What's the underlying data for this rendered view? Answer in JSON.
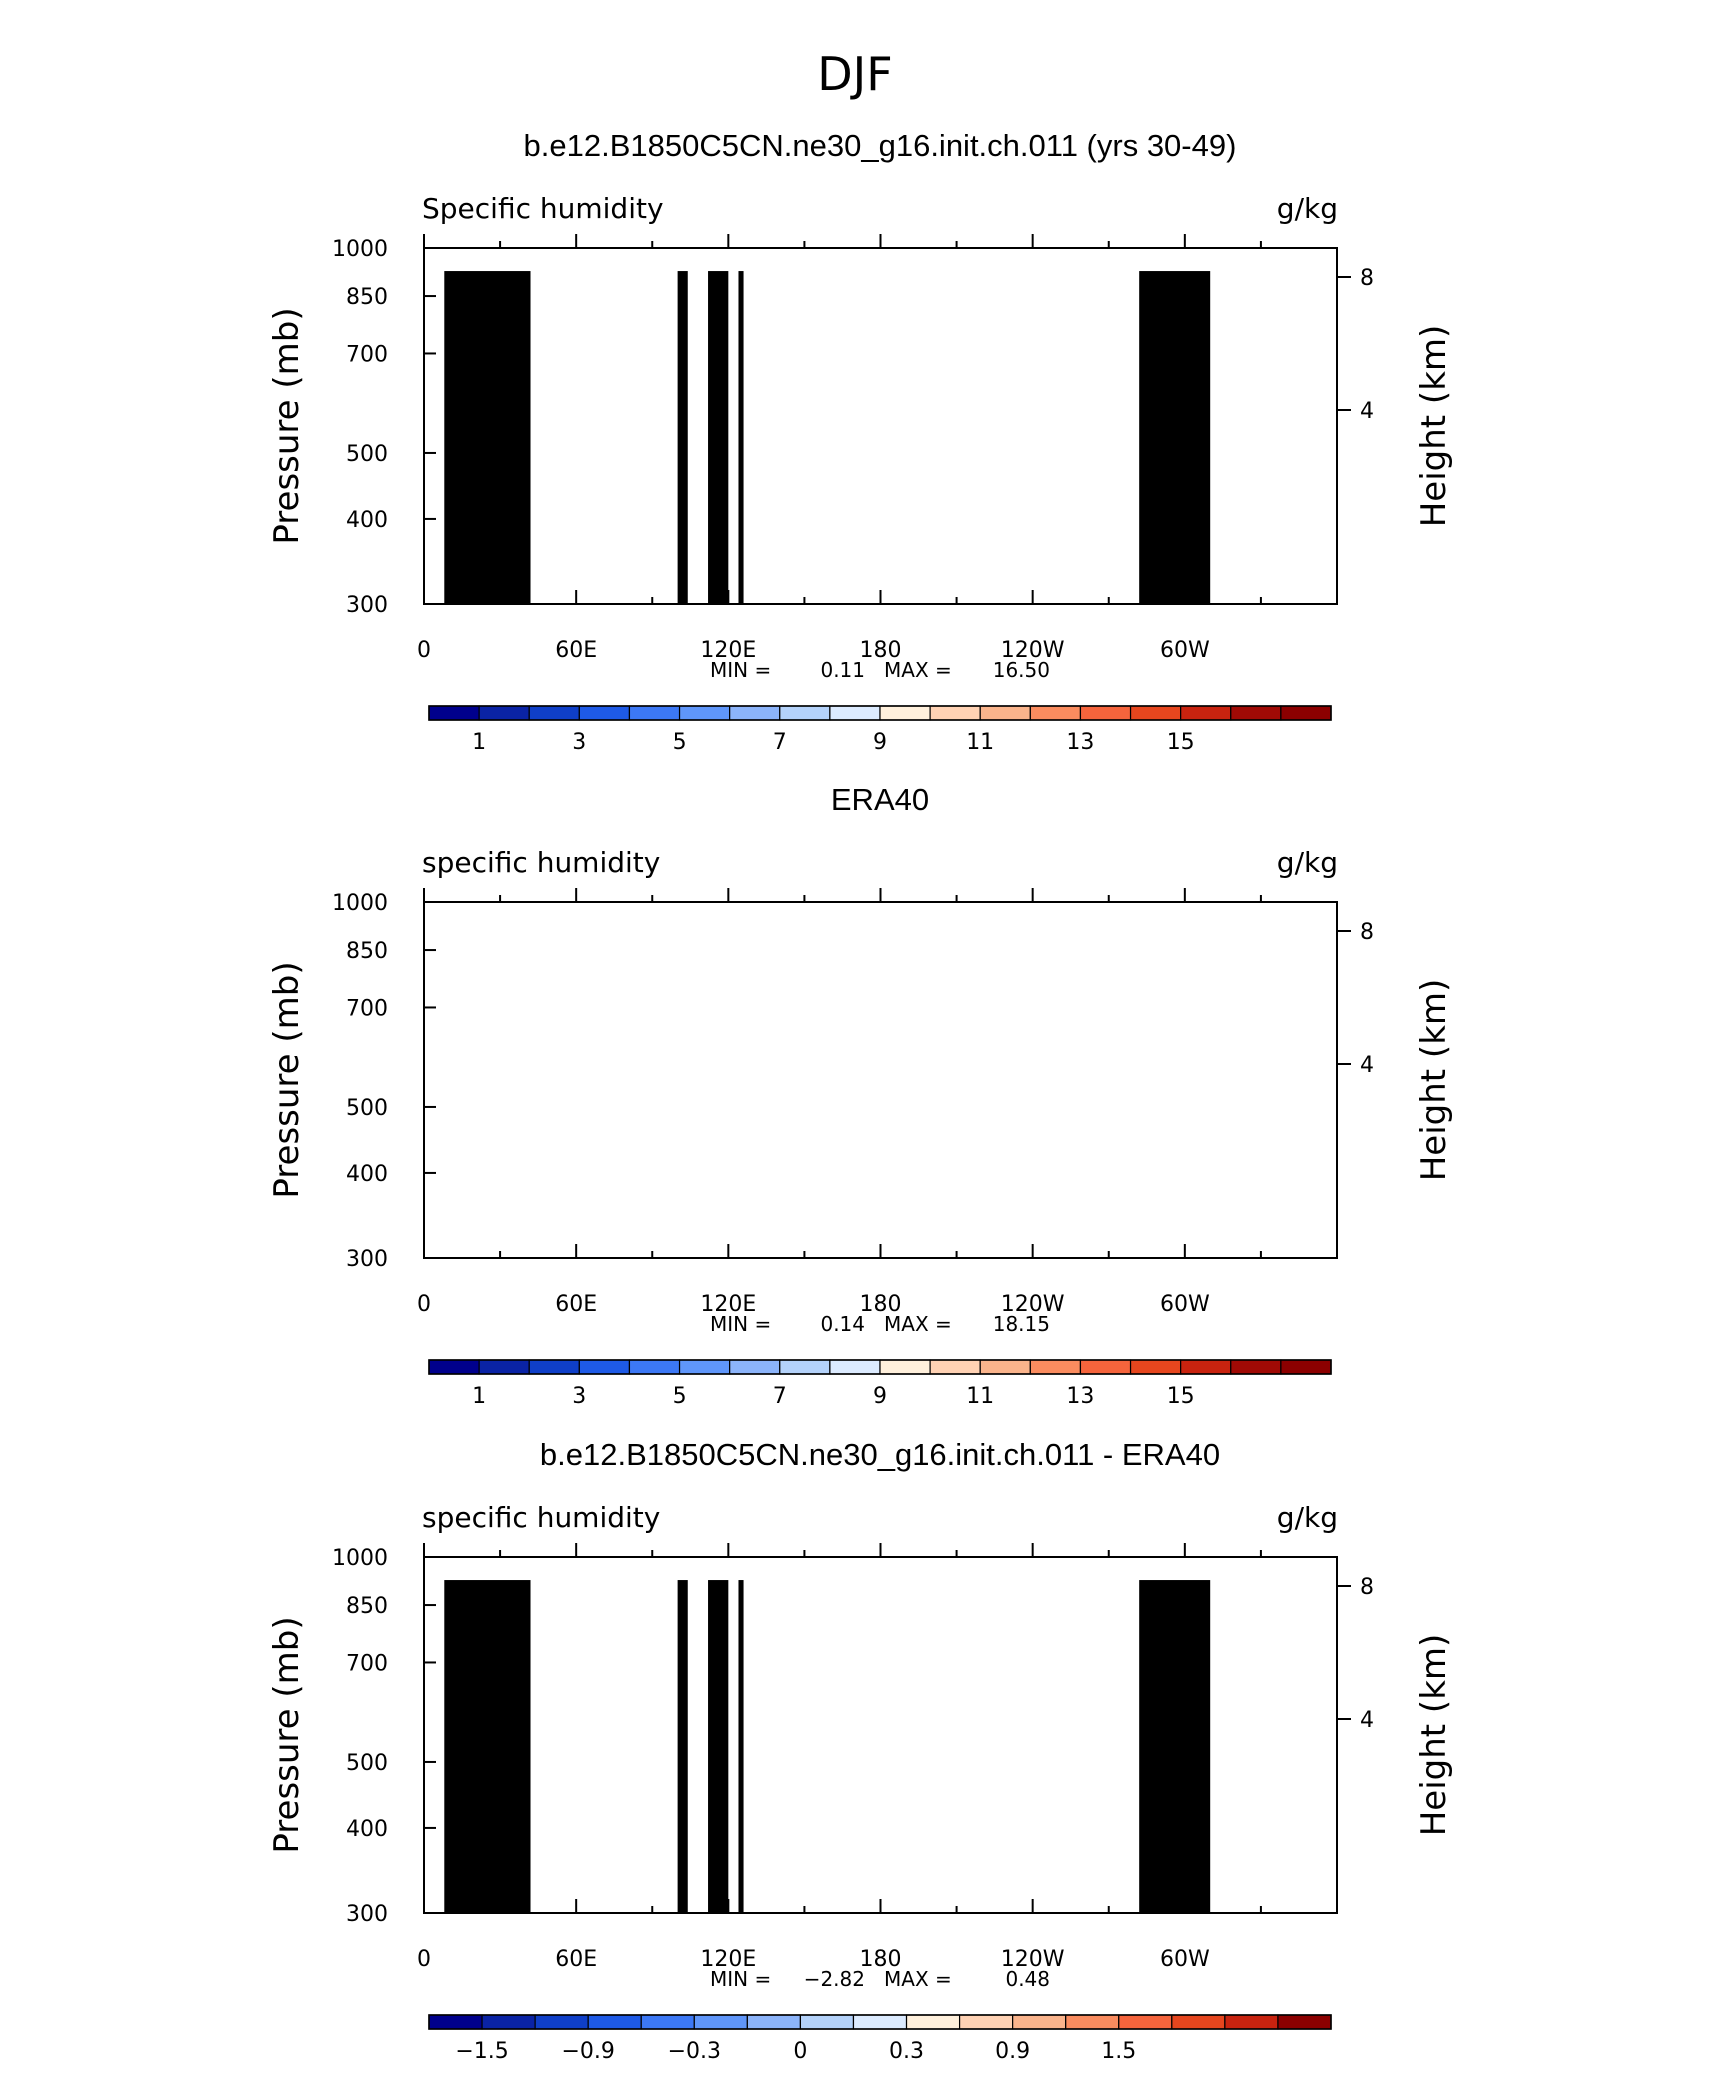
{
  "figure": {
    "title": "DJF"
  },
  "panel_labels": {
    "pressure_axis": "Pressure (mb)",
    "height_axis": "Height (km)",
    "min_label": "MIN =",
    "max_label": "MAX ="
  },
  "chart_data": [
    {
      "type": "heatmap",
      "title": "b.e12.B1850C5CN.ne30_g16.init.ch.011 (yrs 30-49)",
      "left_label": "Specific humidity",
      "units": "g/kg",
      "ylabel": "Pressure (mb)",
      "ylabel_right": "Height (km)",
      "x_ticks": [
        "0",
        "60E",
        "120E",
        "180",
        "120W",
        "60W"
      ],
      "x_tick_values": [
        0,
        60,
        120,
        180,
        240,
        300
      ],
      "xlim": [
        0,
        360
      ],
      "y_ticks": [
        300,
        400,
        500,
        700,
        850,
        1000
      ],
      "ylim": [
        1000,
        300
      ],
      "y_scale": "log",
      "height_ticks": [
        4,
        8
      ],
      "min": "0.11",
      "max": "16.50",
      "colorbar_labels": [
        "1",
        "3",
        "5",
        "7",
        "9",
        "11",
        "13",
        "15"
      ],
      "colors": [
        "#00008c",
        "#0a23a5",
        "#0f3fc8",
        "#1e5ae6",
        "#3c78f5",
        "#5f96fa",
        "#8cb4fa",
        "#b4d2fa",
        "#dcebff",
        "#fff0dc",
        "#ffd2b4",
        "#fab48c",
        "#fa8c5f",
        "#f5643c",
        "#e6461e",
        "#c8230f",
        "#a00a05",
        "#8c0000"
      ],
      "levels": [
        0.5,
        1,
        1.5,
        2,
        2.5,
        3,
        3.5,
        4,
        4.5,
        5,
        5.5,
        6,
        6.5,
        7,
        7.5,
        8,
        8.5,
        9,
        9.5,
        10,
        10.5,
        11,
        11.5,
        12,
        12.5,
        13,
        13.5,
        14,
        14.5,
        15,
        15.5,
        16
      ],
      "model": "seasonal"
    },
    {
      "type": "heatmap",
      "title": "ERA40",
      "left_label": "specific humidity",
      "units": "g/kg",
      "ylabel": "Pressure (mb)",
      "ylabel_right": "Height (km)",
      "x_ticks": [
        "0",
        "60E",
        "120E",
        "180",
        "120W",
        "60W"
      ],
      "x_tick_values": [
        0,
        60,
        120,
        180,
        240,
        300
      ],
      "xlim": [
        0,
        360
      ],
      "y_ticks": [
        300,
        400,
        500,
        700,
        850,
        1000
      ],
      "ylim": [
        1000,
        300
      ],
      "y_scale": "log",
      "height_ticks": [
        4,
        8
      ],
      "min": "0.14",
      "max": "18.15",
      "colorbar_labels": [
        "1",
        "3",
        "5",
        "7",
        "9",
        "11",
        "13",
        "15"
      ],
      "colors": [
        "#00008c",
        "#0a23a5",
        "#0f3fc8",
        "#1e5ae6",
        "#3c78f5",
        "#5f96fa",
        "#8cb4fa",
        "#b4d2fa",
        "#dcebff",
        "#fff0dc",
        "#ffd2b4",
        "#fab48c",
        "#fa8c5f",
        "#f5643c",
        "#e6461e",
        "#c8230f",
        "#a00a05",
        "#8c0000"
      ],
      "levels": [
        0.5,
        1,
        1.5,
        2,
        2.5,
        3,
        3.5,
        4,
        4.5,
        5,
        5.5,
        6,
        6.5,
        7,
        7.5,
        8,
        8.5,
        9,
        9.5,
        10,
        10.5,
        11,
        11.5,
        12,
        12.5,
        13,
        13.5,
        14,
        14.5,
        15,
        15.5,
        16
      ],
      "model": "seasonal"
    },
    {
      "type": "heatmap",
      "title": "b.e12.B1850C5CN.ne30_g16.init.ch.011 - ERA40",
      "left_label": "specific humidity",
      "units": "g/kg",
      "ylabel": "Pressure (mb)",
      "ylabel_right": "Height (km)",
      "x_ticks": [
        "0",
        "60E",
        "120E",
        "180",
        "120W",
        "60W"
      ],
      "x_tick_values": [
        0,
        60,
        120,
        180,
        240,
        300
      ],
      "xlim": [
        0,
        360
      ],
      "y_ticks": [
        300,
        400,
        500,
        700,
        850,
        1000
      ],
      "ylim": [
        1000,
        300
      ],
      "y_scale": "log",
      "height_ticks": [
        4,
        8
      ],
      "min": "−2.82",
      "max": "0.48",
      "colorbar_labels": [
        "−1.5",
        "−0.9",
        "−0.3",
        "0",
        "0.3",
        "0.9",
        "1.5"
      ],
      "colors": [
        "#00008c",
        "#0a23a5",
        "#0f3fc8",
        "#1e5ae6",
        "#3c78f5",
        "#5f96fa",
        "#8cb4fa",
        "#b4d2fa",
        "#dcebff",
        "#fff0dc",
        "#ffd2b4",
        "#fab48c",
        "#fa8c5f",
        "#f5643c",
        "#e6461e",
        "#c8230f",
        "#8c0000"
      ],
      "levels": [
        -1.8,
        -1.5,
        -1.2,
        -0.9,
        -0.6,
        -0.45,
        -0.3,
        -0.15,
        0,
        0.15,
        0.3,
        0.6,
        0.9,
        1.2,
        1.5,
        1.8
      ],
      "model": "difference"
    }
  ]
}
